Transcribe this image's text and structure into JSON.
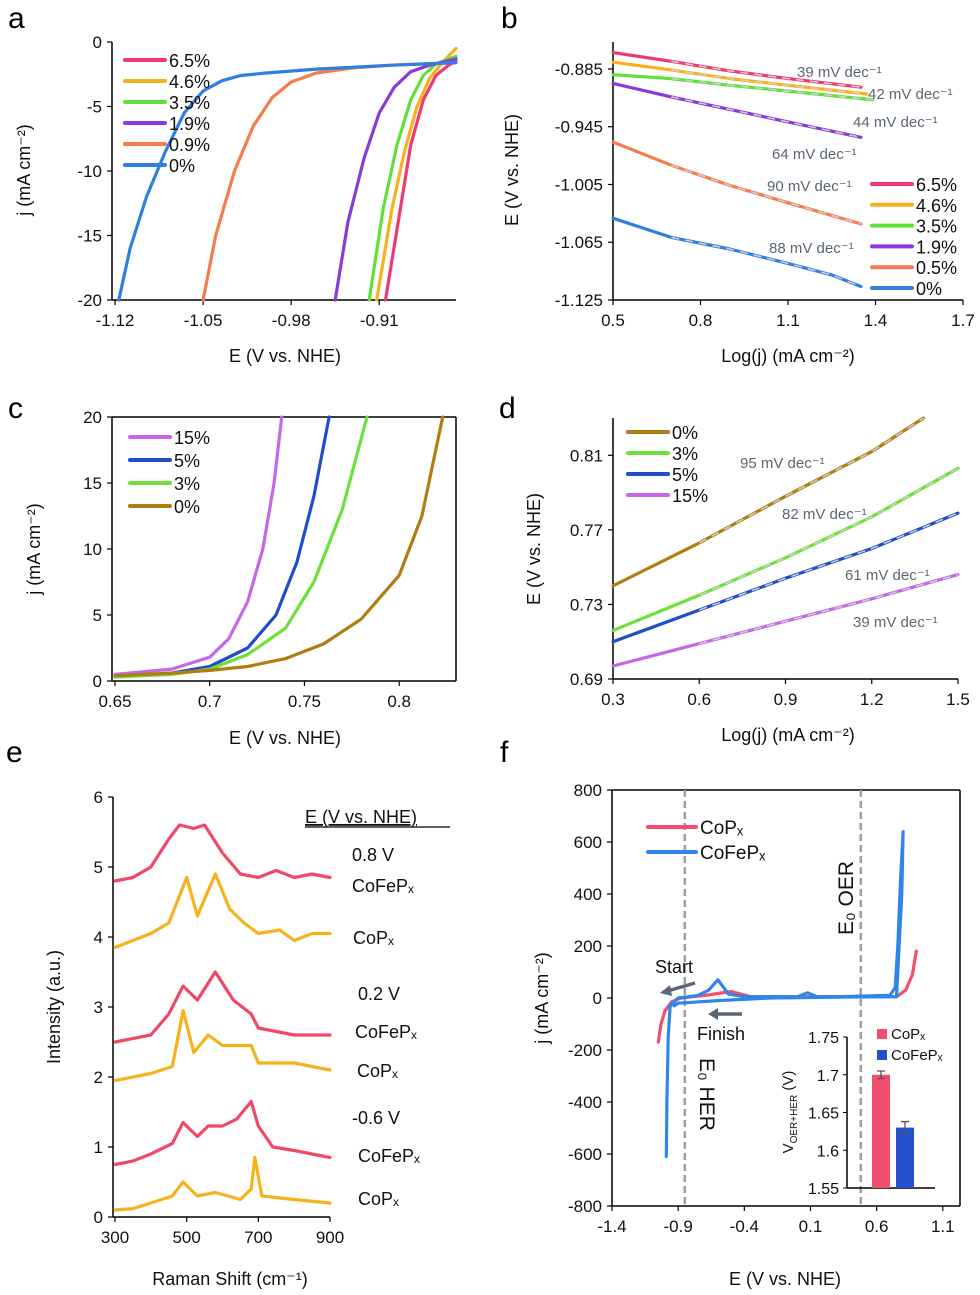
{
  "panel_labels": [
    "a",
    "b",
    "c",
    "d",
    "e",
    "f"
  ],
  "chart_data": [
    {
      "type": "line",
      "xlabel": "E (V vs. NHE)",
      "ylabel": "j (mA cm⁻²)",
      "xlim": [
        -1.12,
        -0.849
      ],
      "ylim": [
        -20,
        0
      ],
      "x_ticks": [
        -1.12,
        -1.05,
        -0.98,
        -0.91
      ],
      "y_ticks": [
        0,
        -5,
        -10,
        -15,
        -20
      ],
      "legend": "top-left",
      "series": [
        {
          "name": "6.5%",
          "color": "#ee3a6e",
          "x": [
            -0.905,
            -0.895,
            -0.885,
            -0.875,
            -0.865,
            -0.855,
            -0.849
          ],
          "y": [
            -20,
            -14,
            -8,
            -4.5,
            -2.6,
            -1.8,
            -1.5
          ]
        },
        {
          "name": "4.6%",
          "color": "#f6b21c",
          "x": [
            -0.912,
            -0.9,
            -0.89,
            -0.88,
            -0.87,
            -0.86,
            -0.849
          ],
          "y": [
            -20,
            -13,
            -8.5,
            -5,
            -2.8,
            -1.6,
            -0.5
          ]
        },
        {
          "name": "3.5%",
          "color": "#5fe03a",
          "x": [
            -0.918,
            -0.907,
            -0.896,
            -0.885,
            -0.875,
            -0.865,
            -0.849
          ],
          "y": [
            -20,
            -13,
            -8,
            -4.5,
            -2.6,
            -1.7,
            -1.1
          ]
        },
        {
          "name": "1.9%",
          "color": "#8a3ad8",
          "x": [
            -0.945,
            -0.935,
            -0.922,
            -0.91,
            -0.898,
            -0.885,
            -0.87,
            -0.849
          ],
          "y": [
            -20,
            -14,
            -9,
            -5.5,
            -3.5,
            -2.3,
            -1.8,
            -1.3
          ]
        },
        {
          "name": "0.9%",
          "color": "#f57c4f",
          "x": [
            -1.05,
            -1.04,
            -1.025,
            -1.01,
            -0.995,
            -0.98,
            -0.96,
            -0.93,
            -0.9,
            -0.849
          ],
          "y": [
            -20,
            -15,
            -10,
            -6.5,
            -4.3,
            -3.1,
            -2.4,
            -2,
            -1.8,
            -1.6
          ]
        },
        {
          "name": "0%",
          "color": "#2f7fe0",
          "x": [
            -1.117,
            -1.108,
            -1.095,
            -1.08,
            -1.065,
            -1.05,
            -1.035,
            -1.02,
            -1.0,
            -0.96,
            -0.9,
            -0.849
          ],
          "y": [
            -20,
            -16,
            -12,
            -8.5,
            -5.5,
            -3.8,
            -3.0,
            -2.6,
            -2.4,
            -2.1,
            -1.8,
            -1.6
          ]
        }
      ]
    },
    {
      "type": "line",
      "xlabel": "Log(j) (mA cm⁻²)",
      "ylabel": "E (V vs. NHE)",
      "xlim": [
        0.5,
        1.7
      ],
      "ylim": [
        -1.125,
        -0.857
      ],
      "x_ticks": [
        0.5,
        0.8,
        1.1,
        1.4,
        1.7
      ],
      "y_ticks": [
        -0.885,
        -0.945,
        -1.005,
        -1.065,
        -1.125
      ],
      "legend": "bottom-right",
      "annotations": [
        "39 mV dec⁻¹",
        "42 mV dec⁻¹",
        "44 mV dec⁻¹",
        "64 mV dec⁻¹",
        "90 mV dec⁻¹",
        "88 mV dec⁻¹"
      ],
      "series": [
        {
          "name": "6.5%",
          "color": "#ee3a6e",
          "x": [
            0.5,
            0.7,
            0.9,
            1.1,
            1.35
          ],
          "y": [
            -0.868,
            -0.877,
            -0.887,
            -0.895,
            -0.904
          ]
        },
        {
          "name": "4.6%",
          "color": "#f6b21c",
          "x": [
            0.5,
            0.7,
            0.9,
            1.1,
            1.37
          ],
          "y": [
            -0.878,
            -0.886,
            -0.895,
            -0.902,
            -0.911
          ]
        },
        {
          "name": "3.5%",
          "color": "#5fe03a",
          "x": [
            0.5,
            0.7,
            0.9,
            1.1,
            1.39
          ],
          "y": [
            -0.891,
            -0.895,
            -0.902,
            -0.908,
            -0.917
          ]
        },
        {
          "name": "1.9%",
          "color": "#8a3ad8",
          "x": [
            0.5,
            0.7,
            0.9,
            1.1,
            1.35
          ],
          "y": [
            -0.9,
            -0.914,
            -0.927,
            -0.94,
            -0.956
          ]
        },
        {
          "name": "0.5%",
          "color": "#f57c4f",
          "x": [
            0.5,
            0.7,
            0.9,
            1.1,
            1.35
          ],
          "y": [
            -0.961,
            -0.985,
            -1.006,
            -1.024,
            -1.046
          ]
        },
        {
          "name": "0%",
          "color": "#2f7fe0",
          "x": [
            0.5,
            0.7,
            0.9,
            1.1,
            1.25,
            1.35
          ],
          "y": [
            -1.04,
            -1.06,
            -1.072,
            -1.087,
            -1.099,
            -1.111
          ]
        }
      ]
    },
    {
      "type": "line",
      "xlabel": "E (V vs. NHE)",
      "ylabel": "j (mA cm⁻²)",
      "xlim": [
        0.65,
        0.83
      ],
      "ylim": [
        0,
        20
      ],
      "x_ticks": [
        0.65,
        0.7,
        0.75,
        0.8
      ],
      "y_ticks": [
        20,
        15,
        10,
        5,
        0
      ],
      "legend": "top-left",
      "series": [
        {
          "name": "15%",
          "color": "#c567e8",
          "x": [
            0.65,
            0.68,
            0.7,
            0.71,
            0.72,
            0.728,
            0.734,
            0.738
          ],
          "y": [
            0.5,
            0.9,
            1.8,
            3.2,
            6,
            10,
            15,
            20
          ]
        },
        {
          "name": "5%",
          "color": "#1f4fc8",
          "x": [
            0.65,
            0.68,
            0.7,
            0.72,
            0.735,
            0.746,
            0.755,
            0.763
          ],
          "y": [
            0.3,
            0.6,
            1.1,
            2.5,
            5,
            9,
            14,
            20
          ]
        },
        {
          "name": "3%",
          "color": "#6de03a",
          "x": [
            0.65,
            0.68,
            0.7,
            0.72,
            0.74,
            0.755,
            0.77,
            0.783
          ],
          "y": [
            0.3,
            0.5,
            0.9,
            2,
            4,
            7.5,
            13,
            20
          ]
        },
        {
          "name": "0%",
          "color": "#b07d12",
          "x": [
            0.65,
            0.68,
            0.7,
            0.72,
            0.74,
            0.76,
            0.78,
            0.8,
            0.812,
            0.823
          ],
          "y": [
            0.4,
            0.6,
            0.8,
            1.1,
            1.7,
            2.8,
            4.7,
            8,
            12.5,
            20
          ]
        }
      ]
    },
    {
      "type": "line",
      "xlabel": "Log(j) (mA cm⁻²)",
      "ylabel": "E (V vs. NHE)",
      "xlim": [
        0.3,
        1.5
      ],
      "ylim": [
        0.69,
        0.83
      ],
      "x_ticks": [
        0.3,
        0.6,
        0.9,
        1.2,
        1.5
      ],
      "y_ticks": [
        0.81,
        0.77,
        0.73,
        0.69
      ],
      "legend": "top-left",
      "annotations": [
        "95 mV dec⁻¹",
        "82 mV dec⁻¹",
        "61 mV dec⁻¹",
        "39 mV dec⁻¹"
      ],
      "series": [
        {
          "name": "0%",
          "color": "#b07d12",
          "x": [
            0.3,
            0.6,
            0.9,
            1.2,
            1.38
          ],
          "y": [
            0.74,
            0.763,
            0.788,
            0.812,
            0.83
          ]
        },
        {
          "name": "3%",
          "color": "#6de03a",
          "x": [
            0.3,
            0.6,
            0.9,
            1.2,
            1.5
          ],
          "y": [
            0.716,
            0.735,
            0.755,
            0.777,
            0.803
          ]
        },
        {
          "name": "5%",
          "color": "#1f4fc8",
          "x": [
            0.3,
            0.6,
            0.9,
            1.2,
            1.5
          ],
          "y": [
            0.71,
            0.727,
            0.744,
            0.76,
            0.779
          ]
        },
        {
          "name": "15%",
          "color": "#c567e8",
          "x": [
            0.3,
            0.6,
            0.9,
            1.2,
            1.5
          ],
          "y": [
            0.697,
            0.709,
            0.721,
            0.733,
            0.746
          ]
        }
      ]
    },
    {
      "type": "line",
      "xlabel": "Raman Shift (cm⁻¹)",
      "ylabel": "Intensity (a.u.)",
      "xlim": [
        300,
        900
      ],
      "ylim": [
        0,
        6
      ],
      "x_ticks": [
        300,
        500,
        700,
        900
      ],
      "y_ticks": [
        6,
        5,
        4,
        3,
        2,
        1,
        0
      ],
      "header": "E (V vs. NHE)",
      "potentials": [
        "0.8 V",
        "0.2 V",
        "-0.6 V"
      ],
      "series_labels": [
        "CoFePₓ",
        "CoPₓ",
        "CoFePₓ",
        "CoPₓ",
        "CoFePₓ",
        "CoPₓ"
      ],
      "series": [
        {
          "color": "#ee4a68",
          "x": [
            300,
            350,
            400,
            450,
            480,
            520,
            550,
            600,
            650,
            700,
            750,
            800,
            850,
            900
          ],
          "y": [
            4.8,
            4.85,
            5.0,
            5.4,
            5.6,
            5.55,
            5.6,
            5.2,
            4.9,
            4.85,
            4.95,
            4.85,
            4.9,
            4.85
          ]
        },
        {
          "color": "#f6b21c",
          "x": [
            300,
            350,
            400,
            450,
            500,
            530,
            580,
            620,
            660,
            700,
            760,
            800,
            850,
            900
          ],
          "y": [
            3.85,
            3.95,
            4.05,
            4.2,
            4.85,
            4.3,
            4.9,
            4.4,
            4.2,
            4.05,
            4.1,
            3.95,
            4.05,
            4.05
          ]
        },
        {
          "color": "#ee4a68",
          "x": [
            300,
            350,
            400,
            450,
            490,
            530,
            580,
            630,
            680,
            700,
            750,
            800,
            900
          ],
          "y": [
            2.5,
            2.55,
            2.6,
            2.9,
            3.3,
            3.1,
            3.5,
            3.1,
            2.9,
            2.7,
            2.65,
            2.6,
            2.6
          ]
        },
        {
          "color": "#f6b21c",
          "x": [
            300,
            350,
            400,
            460,
            490,
            520,
            560,
            600,
            680,
            700,
            800,
            900
          ],
          "y": [
            1.95,
            2.0,
            2.05,
            2.15,
            2.95,
            2.35,
            2.6,
            2.45,
            2.45,
            2.2,
            2.2,
            2.1
          ]
        },
        {
          "color": "#ee4a68",
          "x": [
            300,
            350,
            400,
            460,
            490,
            530,
            560,
            600,
            640,
            680,
            700,
            740,
            800,
            900
          ],
          "y": [
            0.75,
            0.8,
            0.9,
            1.05,
            1.35,
            1.15,
            1.3,
            1.3,
            1.4,
            1.65,
            1.3,
            1.0,
            0.95,
            0.85
          ]
        },
        {
          "color": "#f6b21c",
          "x": [
            300,
            350,
            400,
            460,
            490,
            530,
            580,
            650,
            680,
            690,
            710,
            800,
            900
          ],
          "y": [
            0.1,
            0.12,
            0.2,
            0.3,
            0.5,
            0.3,
            0.35,
            0.25,
            0.4,
            0.85,
            0.3,
            0.25,
            0.2
          ]
        }
      ]
    },
    {
      "type": "line",
      "xlabel": "E (V vs. NHE)",
      "ylabel": "j (mA cm⁻²)",
      "xlim": [
        -1.4,
        1.23
      ],
      "ylim": [
        -800,
        800
      ],
      "x_ticks": [
        -1.4,
        -0.9,
        -0.4,
        0.1,
        0.6,
        1.1
      ],
      "y_ticks": [
        800,
        600,
        400,
        200,
        0,
        -200,
        -400,
        -600,
        -800
      ],
      "legend": "top-left",
      "annotations": {
        "start": "Start",
        "finish": "Finish",
        "e0_oer": "E₀ OER",
        "e0_her": "E₀ HER"
      },
      "reference_lines": [
        -0.85,
        0.48
      ],
      "series": [
        {
          "name": "CoPₓ",
          "color": "#f0506e",
          "x": [
            -1.05,
            -1.03,
            -1.0,
            -0.95,
            -0.88,
            -0.7,
            -0.5,
            -0.35,
            0,
            0.5,
            0.75,
            0.82,
            0.87,
            0.9
          ],
          "y": [
            -170,
            -100,
            -50,
            -15,
            0,
            10,
            25,
            5,
            5,
            5,
            5,
            30,
            90,
            180
          ]
        },
        {
          "name": "CoFePₓ",
          "color": "#2f86e8",
          "x": [
            -0.99,
            -0.985,
            -0.975,
            -0.96,
            -0.9,
            -0.75,
            -0.67,
            -0.6,
            -0.52,
            -0.4,
            0,
            0.08,
            0.15,
            0.3,
            0.7,
            0.74,
            0.76,
            0.78,
            0.8,
            0.79,
            0.75,
            0.3,
            -0.2,
            -0.6,
            -0.9,
            -0.93
          ],
          "y": [
            -610,
            -400,
            -150,
            -30,
            0,
            10,
            30,
            70,
            15,
            5,
            5,
            20,
            5,
            5,
            10,
            40,
            200,
            450,
            640,
            400,
            5,
            3,
            0,
            -10,
            -20,
            -30
          ]
        }
      ],
      "inset": {
        "type": "bar",
        "ylabel_main": "V",
        "ylabel_sub": "OER+HER",
        "ylabel_unit": " (V)",
        "ylim": [
          1.55,
          1.75
        ],
        "y_ticks": [
          1.75,
          1.7,
          1.65,
          1.6,
          1.55
        ],
        "categories": [
          "CoPₓ",
          "CoFePₓ"
        ],
        "values": [
          1.7,
          1.63
        ],
        "errors": [
          0.005,
          0.008
        ],
        "colors": [
          "#f0506e",
          "#2450d0"
        ]
      }
    }
  ]
}
